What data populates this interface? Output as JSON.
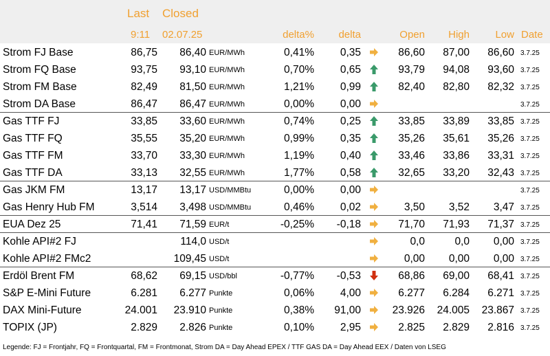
{
  "header": {
    "last_label": "Last",
    "closed_label": "Closed",
    "last_time": "9:11",
    "closed_date": "02.07.25",
    "delta_pct_label": "delta%",
    "delta_label": "delta",
    "open_label": "Open",
    "high_label": "High",
    "low_label": "Low",
    "date_label": "Date"
  },
  "colors": {
    "header_orange": "#f0a030",
    "header_bg": "#efefef",
    "up": "#3a9a6a",
    "neutral": "#f0b040",
    "down": "#d03010"
  },
  "rows": [
    {
      "name": "Strom FJ Base",
      "last": "86,75",
      "closed": "86,40",
      "unit": "EUR/MWh",
      "delta_pct": "0,41%",
      "delta": "0,35",
      "trend": "neutral",
      "open": "86,60",
      "high": "87,00",
      "low": "86,60",
      "date": "3.7.25"
    },
    {
      "name": "Strom FQ Base",
      "last": "93,75",
      "closed": "93,10",
      "unit": "EUR/MWh",
      "delta_pct": "0,70%",
      "delta": "0,65",
      "trend": "up",
      "open": "93,79",
      "high": "94,08",
      "low": "93,60",
      "date": "3.7.25"
    },
    {
      "name": "Strom FM Base",
      "last": "82,49",
      "closed": "81,50",
      "unit": "EUR/MWh",
      "delta_pct": "1,21%",
      "delta": "0,99",
      "trend": "up",
      "open": "82,40",
      "high": "82,80",
      "low": "82,32",
      "date": "3.7.25"
    },
    {
      "name": "Strom DA Base",
      "last": "86,47",
      "closed": "86,47",
      "unit": "EUR/MWh",
      "delta_pct": "0,00%",
      "delta": "0,00",
      "trend": "neutral",
      "open": "",
      "high": "",
      "low": "",
      "date": "3.7.25"
    },
    {
      "name": "Gas TTF FJ",
      "last": "33,85",
      "closed": "33,60",
      "unit": "EUR/MWh",
      "delta_pct": "0,74%",
      "delta": "0,25",
      "trend": "up",
      "open": "33,85",
      "high": "33,89",
      "low": "33,85",
      "date": "3.7.25"
    },
    {
      "name": "Gas TTF FQ",
      "last": "35,55",
      "closed": "35,20",
      "unit": "EUR/MWh",
      "delta_pct": "0,99%",
      "delta": "0,35",
      "trend": "up",
      "open": "35,26",
      "high": "35,61",
      "low": "35,26",
      "date": "3.7.25"
    },
    {
      "name": "Gas TTF FM",
      "last": "33,70",
      "closed": "33,30",
      "unit": "EUR/MWh",
      "delta_pct": "1,19%",
      "delta": "0,40",
      "trend": "up",
      "open": "33,46",
      "high": "33,86",
      "low": "33,31",
      "date": "3.7.25"
    },
    {
      "name": "Gas TTF DA",
      "last": "33,13",
      "closed": "32,55",
      "unit": "EUR/MWh",
      "delta_pct": "1,77%",
      "delta": "0,58",
      "trend": "up",
      "open": "32,65",
      "high": "33,20",
      "low": "32,43",
      "date": "3.7.25"
    },
    {
      "name": "Gas JKM FM",
      "last": "13,17",
      "closed": "13,17",
      "unit": "USD/MMBtu",
      "delta_pct": "0,00%",
      "delta": "0,00",
      "trend": "neutral",
      "open": "",
      "high": "",
      "low": "",
      "date": "3.7.25"
    },
    {
      "name": "Gas Henry Hub FM",
      "last": "3,514",
      "closed": "3,498",
      "unit": "USD/MMBtu",
      "delta_pct": "0,46%",
      "delta": "0,02",
      "trend": "neutral",
      "open": "3,50",
      "high": "3,52",
      "low": "3,47",
      "date": "3.7.25"
    },
    {
      "name": "EUA Dez 25",
      "last": "71,41",
      "closed": "71,59",
      "unit": "EUR/t",
      "delta_pct": "-0,25%",
      "delta": "-0,18",
      "trend": "neutral",
      "open": "71,70",
      "high": "71,93",
      "low": "71,37",
      "date": "3.7.25"
    },
    {
      "name": "Kohle API#2 FJ",
      "last": "",
      "closed": "114,0",
      "unit": "USD/t",
      "delta_pct": "",
      "delta": "",
      "trend": "neutral",
      "open": "0,0",
      "high": "0,0",
      "low": "0,00",
      "date": "3.7.25"
    },
    {
      "name": "Kohle API#2 FMc2",
      "last": "",
      "closed": "109,45",
      "unit": "USD/t",
      "delta_pct": "",
      "delta": "",
      "trend": "neutral",
      "open": "0,00",
      "high": "0,00",
      "low": "0,00",
      "date": "3.7.25"
    },
    {
      "name": "Erdöl Brent FM",
      "last": "68,62",
      "closed": "69,15",
      "unit": "USD/bbl",
      "delta_pct": "-0,77%",
      "delta": "-0,53",
      "trend": "down",
      "open": "68,86",
      "high": "69,00",
      "low": "68,41",
      "date": "3.7.25"
    },
    {
      "name": "S&P E-Mini Future",
      "last": "6.281",
      "closed": "6.277",
      "unit": "Punkte",
      "delta_pct": "0,06%",
      "delta": "4,00",
      "trend": "neutral",
      "open": "6.277",
      "high": "6.284",
      "low": "6.271",
      "date": "3.7.25"
    },
    {
      "name": "DAX Mini-Future",
      "last": "24.001",
      "closed": "23.910",
      "unit": "Punkte",
      "delta_pct": "0,38%",
      "delta": "91,00",
      "trend": "neutral",
      "open": "23.926",
      "high": "24.005",
      "low": "23.867",
      "date": "3.7.25"
    },
    {
      "name": "TOPIX (JP)",
      "last": "2.829",
      "closed": "2.826",
      "unit": "Punkte",
      "delta_pct": "0,10%",
      "delta": "2,95",
      "trend": "neutral",
      "open": "2.825",
      "high": "2.829",
      "low": "2.816",
      "date": "3.7.25"
    }
  ],
  "legend": "Legende: FJ = Frontjahr, FQ = Frontquartal, FM = Frontmonat, Strom DA = Day Ahead EPEX / TTF GAS DA = Day Ahead EEX / Daten von LSEG"
}
